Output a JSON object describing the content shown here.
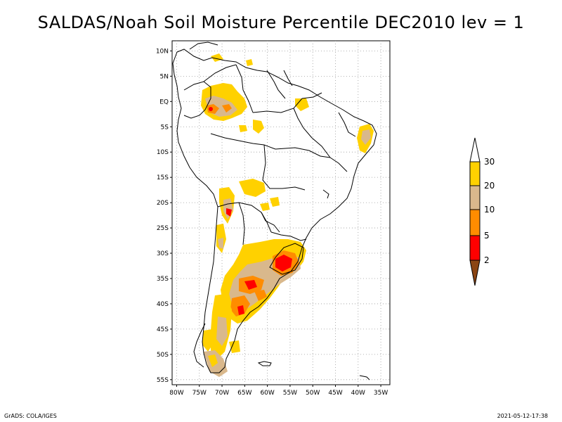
{
  "title": "SALDAS/Noah Soil Moisture Percentile DEC2010 lev = 1",
  "map": {
    "lat_labels": [
      "10N",
      "5N",
      "EQ",
      "5S",
      "10S",
      "15S",
      "20S",
      "25S",
      "30S",
      "35S",
      "40S",
      "45S",
      "50S",
      "55S"
    ],
    "lon_labels": [
      "80W",
      "75W",
      "70W",
      "65W",
      "60W",
      "55W",
      "50W",
      "45W",
      "40W",
      "35W"
    ],
    "grid": "dotted",
    "region": "South America"
  },
  "colorbar": {
    "labels": [
      "30",
      "20",
      "10",
      "5",
      "2"
    ],
    "colors": {
      "above_30": "#ffffff",
      "20_30": "#ffd100",
      "10_20": "#d9b88c",
      "5_10": "#ff8c00",
      "2_5": "#ff0000",
      "below_2": "#8b4513"
    }
  },
  "footer": {
    "left": "GrADS: COLA/IGES",
    "right": "2021-05-12-17:38"
  }
}
